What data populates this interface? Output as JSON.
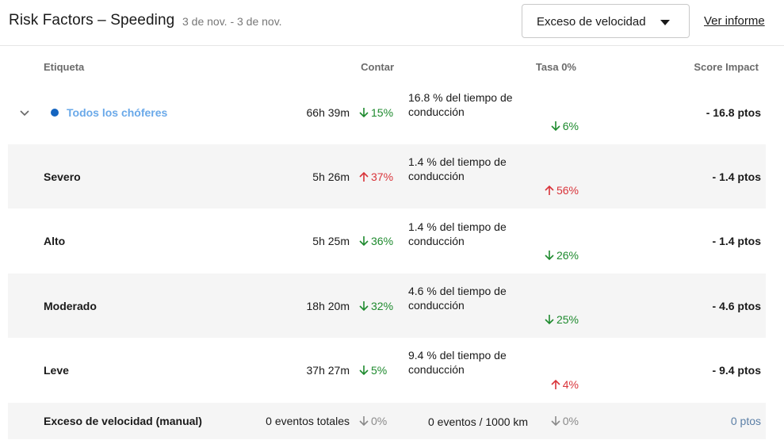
{
  "header": {
    "title": "Risk Factors – Speeding",
    "date_range": "3 de nov. - 3 de nov.",
    "select_value": "Exceso de velocidad",
    "report_link": "Ver informe"
  },
  "columns": {
    "label": "Etiqueta",
    "count": "Contar",
    "rate": "Tasa 0%",
    "score": "Score Impact"
  },
  "rows": [
    {
      "label": "Todos los chóferes",
      "count": "66h 39m",
      "count_delta": "15%",
      "count_dir": "down",
      "rate": "16.8 % del tiempo de conducción",
      "rate_delta": "6%",
      "rate_dir": "down",
      "score": "- 16.8 ptos"
    },
    {
      "label": "Severo",
      "count": "5h 26m",
      "count_delta": "37%",
      "count_dir": "up",
      "rate": "1.4 % del tiempo de conducción",
      "rate_delta": "56%",
      "rate_dir": "up",
      "score": "- 1.4 ptos"
    },
    {
      "label": "Alto",
      "count": "5h 25m",
      "count_delta": "36%",
      "count_dir": "down",
      "rate": "1.4 % del tiempo de conducción",
      "rate_delta": "26%",
      "rate_dir": "down",
      "score": "- 1.4 ptos"
    },
    {
      "label": "Moderado",
      "count": "18h 20m",
      "count_delta": "32%",
      "count_dir": "down",
      "rate": "4.6 % del tiempo de conducción",
      "rate_delta": "25%",
      "rate_dir": "down",
      "score": "- 4.6 ptos"
    },
    {
      "label": "Leve",
      "count": "37h 27m",
      "count_delta": "5%",
      "count_dir": "down",
      "rate": "9.4 % del tiempo de conducción",
      "rate_delta": "4%",
      "rate_dir": "up",
      "score": "- 9.4 ptos"
    },
    {
      "label": "Exceso de velocidad (manual)",
      "count": "0 eventos totales",
      "count_delta": "0%",
      "count_dir": "neutral",
      "rate": "0 eventos / 1000 km",
      "rate_delta": "0%",
      "rate_dir": "neutral",
      "score": "0 ptos"
    }
  ],
  "colors": {
    "down": "#1e8a2e",
    "up": "#d9343a",
    "neutral": "#8a8a8a",
    "all_drivers_label": "#6aa9e9",
    "dot": "#1565c0",
    "row_shade": "#f5f5f5"
  },
  "icons": {
    "down": "arrow-down-icon",
    "up": "arrow-up-icon",
    "expand": "chevron-down-icon",
    "select": "caret-down-icon"
  }
}
